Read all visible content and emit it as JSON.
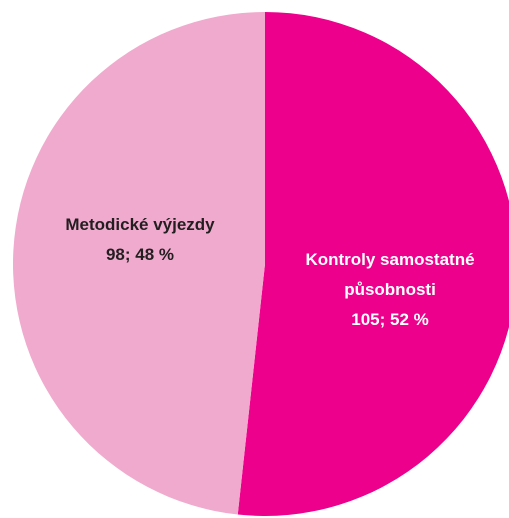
{
  "chart_data": {
    "type": "pie",
    "categories": [
      "Kontroly samostatné působnosti",
      "Metodické výjezdy"
    ],
    "values": [
      105,
      98
    ],
    "value_labels": [
      "105; 52 %",
      "98; 48 %"
    ],
    "colors": [
      "#ec008c",
      "#f0aacd"
    ]
  }
}
